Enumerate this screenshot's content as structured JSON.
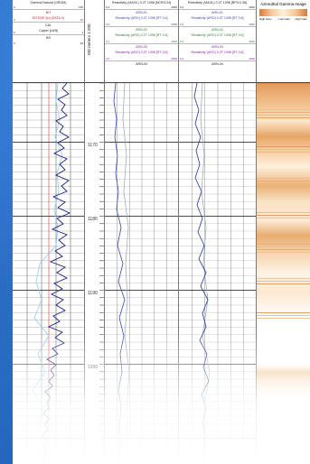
{
  "panel1": {
    "row1": {
      "title": "Gamma Natural (GRGM)",
      "left": "0",
      "right": "150"
    },
    "row2": {
      "title": "BIT",
      "sub": "BITSIZE [in] (DATA.0)",
      "left": "0",
      "right": "20"
    },
    "row3": {
      "title": "CAL",
      "sub": "Calper [Lb/ft]",
      "left": "0",
      "right": "1"
    },
    "row4": {
      "title": "BS",
      "left": "0",
      "right": "20"
    }
  },
  "md": {
    "title": "MD meters 1:200",
    "depths": [
      "1170",
      "1180",
      "1190",
      "1200"
    ]
  },
  "panel2": {
    "row1": {
      "title": "Resistivity (MAOL) 0.2T 1398 [NCRCO4]",
      "left": "0.2",
      "right": "2000"
    },
    "row2": {
      "title": "ARN-01",
      "sub": "Resistivity (ARO) 0.2T 1398 [RT 0.6]",
      "left": "0.2",
      "right": "2000"
    },
    "row3": {
      "title": "ARN-02",
      "sub": "Resistivity (ARO) 0.2T 1398 [RT 0.6]",
      "left": "0.2",
      "right": "2000"
    },
    "row4": {
      "title": "ARN-03",
      "sub": "Resistivity (ARO) 0.2T 1398 [RT 0.6]",
      "left": "0.2",
      "right": "2000"
    },
    "row5": {
      "title": "ARN-04"
    }
  },
  "panel3": {
    "row1": {
      "title": "Resistivity (MAOL) 0.2T 1398 [RPCO.36]",
      "left": "0.2",
      "right": "2000"
    },
    "row2": {
      "title": "ARN-01",
      "sub": "Resistivity (ARO) 0.2T 1398 [RT 0.6]",
      "left": "0.2",
      "right": "2000"
    },
    "row3": {
      "title": "ARN-02",
      "sub": "Resistivity (ARO) 0.2T 1398 [RT 0.6]",
      "left": "0.2",
      "right": "2000"
    },
    "row4": {
      "title": "ARN-03",
      "sub": "Resistivity (ARO) 0.2T 1398 [RT 0.6]",
      "left": "0.2",
      "right": "2000"
    },
    "row5": {
      "title": "ARN-04"
    }
  },
  "image": {
    "title": "Azimuthal Gamma Image",
    "scale_left": "High Gam",
    "scale_mid": "Low Gam",
    "scale_right": "High Gam"
  },
  "colors": {
    "background": "#2a6cc4",
    "gamma": "#1a237e",
    "resistivity": "#3949ab",
    "image_dark": "#e49a5c",
    "image_light": "#fdf0dc"
  }
}
